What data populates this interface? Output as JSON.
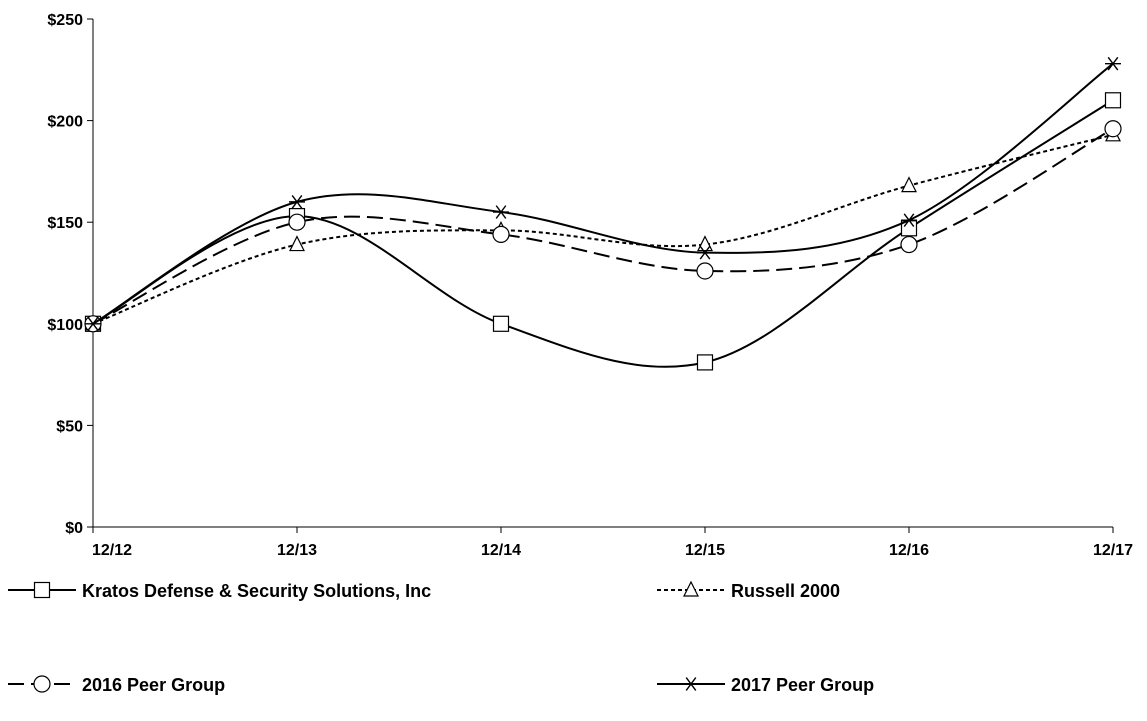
{
  "chart_data": {
    "type": "line",
    "title": "",
    "xlabel": "",
    "ylabel": "",
    "categories": [
      "12/12",
      "12/13",
      "12/14",
      "12/15",
      "12/16",
      "12/17"
    ],
    "ylim": [
      0,
      250
    ],
    "y_ticks": [
      0,
      50,
      100,
      150,
      200,
      250
    ],
    "y_tick_labels": [
      "$0",
      "$50",
      "$100",
      "$150",
      "$200",
      "$250"
    ],
    "grid": false,
    "legend_position": "bottom",
    "series": [
      {
        "name": "Kratos Defense & Security Solutions, Inc",
        "values": [
          100,
          153,
          100,
          81,
          147,
          210
        ],
        "marker": "square",
        "line_style": "solid"
      },
      {
        "name": "Russell 2000",
        "values": [
          100,
          139,
          146,
          139,
          168,
          193
        ],
        "marker": "triangle",
        "line_style": "dotted"
      },
      {
        "name": "2016 Peer Group",
        "values": [
          100,
          150,
          144,
          126,
          139,
          196
        ],
        "marker": "circle",
        "line_style": "dashed"
      },
      {
        "name": "2017 Peer Group",
        "values": [
          100,
          160,
          155,
          135,
          151,
          228
        ],
        "marker": "asterisk",
        "line_style": "solid"
      }
    ]
  }
}
